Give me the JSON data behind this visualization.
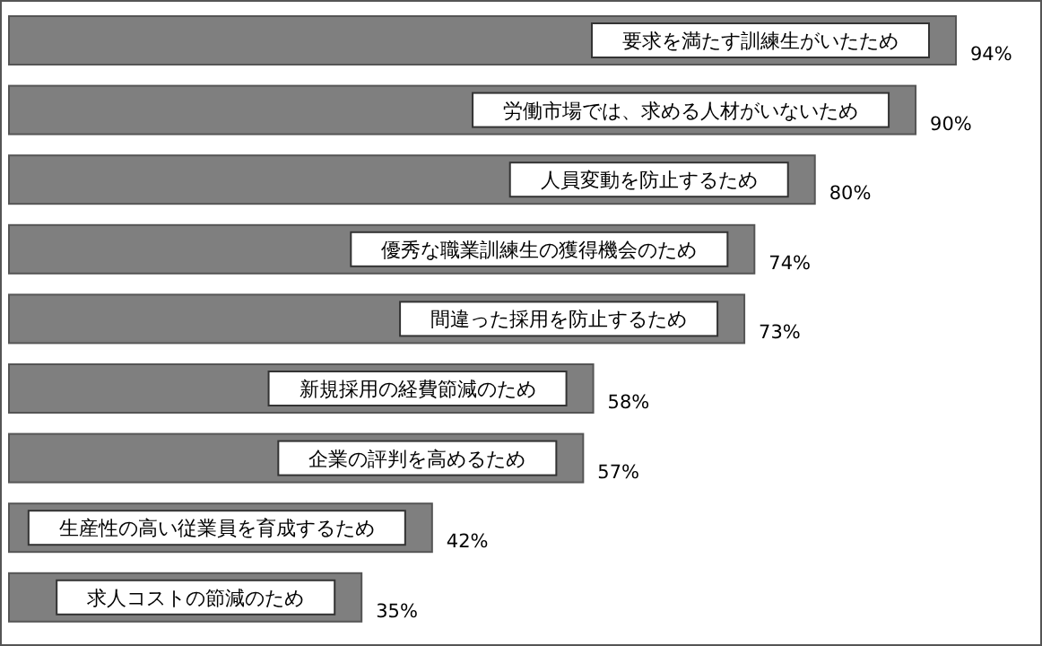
{
  "chart_data": {
    "type": "bar",
    "orientation": "horizontal",
    "categories": [
      "要求を満たす訓練生がいたため",
      "労働市場では、求める人材がいないため",
      "人員変動を防止するため",
      "優秀な職業訓練生の獲得機会のため",
      "間違った採用を防止するため",
      "新規採用の経費節減のため",
      "企業の評判を高めるため",
      "生産性の高い従業員を育成するため",
      "求人コストの節減のため"
    ],
    "values": [
      94,
      90,
      80,
      74,
      73,
      58,
      57,
      42,
      35
    ],
    "value_labels": [
      "94%",
      "90%",
      "80%",
      "74%",
      "73%",
      "58%",
      "57%",
      "42%",
      "35%"
    ],
    "color": "#7f7f7f"
  }
}
